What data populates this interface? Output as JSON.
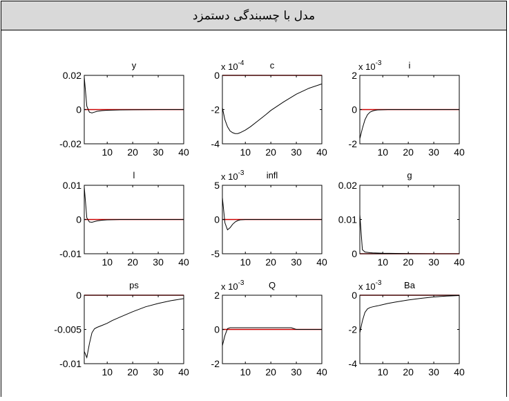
{
  "header": {
    "title": "مدل با چسبندگی دستمزد"
  },
  "colors": {
    "response": "#000000",
    "zero_line": "#cc0000",
    "axis": "#000000",
    "header_bg": "#d9d9d9"
  },
  "chart_data": [
    {
      "type": "line",
      "title": "y",
      "exponent": "",
      "xlim": [
        1,
        40
      ],
      "ylim": [
        -0.02,
        0.02
      ],
      "xticks": [
        "10",
        "20",
        "30",
        "40"
      ],
      "yticks": [
        "0.02",
        "0",
        "-0.02"
      ],
      "series": [
        {
          "x": [
            1,
            2,
            3,
            4,
            5,
            6,
            8,
            10,
            15,
            20,
            30,
            40
          ],
          "values": [
            0.019,
            0.002,
            -0.0015,
            -0.002,
            -0.0015,
            -0.001,
            -0.0006,
            -0.0004,
            -0.0002,
            -0.0001,
            0,
            0
          ]
        }
      ]
    },
    {
      "type": "line",
      "title": "c",
      "exponent": "-4",
      "xlim": [
        1,
        40
      ],
      "ylim": [
        -4,
        0
      ],
      "xticks": [
        "10",
        "20",
        "30",
        "40"
      ],
      "yticks": [
        "0",
        "-2",
        "-4"
      ],
      "series": [
        {
          "x": [
            1,
            2,
            3,
            4,
            5,
            6,
            7,
            8,
            10,
            12,
            15,
            18,
            20,
            25,
            30,
            35,
            40
          ],
          "values": [
            -1.9,
            -2.6,
            -3.0,
            -3.25,
            -3.35,
            -3.4,
            -3.4,
            -3.35,
            -3.2,
            -3.0,
            -2.65,
            -2.3,
            -2.05,
            -1.55,
            -1.1,
            -0.75,
            -0.5
          ]
        }
      ]
    },
    {
      "type": "line",
      "title": "i",
      "exponent": "-3",
      "xlim": [
        1,
        40
      ],
      "ylim": [
        -2,
        2
      ],
      "xticks": [
        "10",
        "20",
        "30",
        "40"
      ],
      "yticks": [
        "2",
        "0",
        "-2"
      ],
      "series": [
        {
          "x": [
            1,
            2,
            3,
            4,
            5,
            6,
            7,
            8,
            10,
            12,
            15,
            20,
            30,
            40
          ],
          "values": [
            -1.7,
            -1.1,
            -0.6,
            -0.3,
            -0.15,
            -0.08,
            -0.04,
            -0.02,
            -0.01,
            0,
            0,
            0,
            0,
            0
          ]
        }
      ]
    },
    {
      "type": "line",
      "title": "l",
      "exponent": "",
      "xlim": [
        1,
        40
      ],
      "ylim": [
        -0.01,
        0.01
      ],
      "xticks": [
        "10",
        "20",
        "30",
        "40"
      ],
      "yticks": [
        "0.01",
        "0",
        "-0.01"
      ],
      "series": [
        {
          "x": [
            1,
            2,
            3,
            4,
            5,
            6,
            8,
            10,
            15,
            20,
            30,
            40
          ],
          "values": [
            0.0095,
            0.0005,
            -0.0007,
            -0.0008,
            -0.0006,
            -0.0004,
            -0.0002,
            -0.0001,
            0,
            0,
            0,
            0
          ]
        }
      ]
    },
    {
      "type": "line",
      "title": "infl",
      "exponent": "-3",
      "xlim": [
        1,
        40
      ],
      "ylim": [
        -5,
        5
      ],
      "xticks": [
        "10",
        "20",
        "30",
        "40"
      ],
      "yticks": [
        "5",
        "0",
        "-5"
      ],
      "series": [
        {
          "x": [
            1,
            2,
            3,
            4,
            5,
            6,
            7,
            8,
            10,
            15,
            20,
            30,
            40
          ],
          "values": [
            3.2,
            -0.5,
            -1.5,
            -1.2,
            -0.7,
            -0.35,
            -0.15,
            -0.05,
            0,
            0,
            0,
            0,
            0
          ]
        }
      ]
    },
    {
      "type": "line",
      "title": "g",
      "exponent": "",
      "xlim": [
        1,
        40
      ],
      "ylim": [
        0,
        0.02
      ],
      "xticks": [
        "10",
        "20",
        "30",
        "40"
      ],
      "yticks": [
        "0.02",
        "0.01",
        "0"
      ],
      "series": [
        {
          "x": [
            1,
            2,
            3,
            4,
            5,
            6,
            8,
            10,
            15,
            20,
            30,
            40
          ],
          "values": [
            0.0115,
            0.0012,
            0.0005,
            0.0004,
            0.0003,
            0.00025,
            0.0002,
            0.00015,
            0.0001,
            5e-05,
            0,
            0
          ]
        }
      ]
    },
    {
      "type": "line",
      "title": "ps",
      "exponent": "",
      "xlim": [
        1,
        40
      ],
      "ylim": [
        -0.01,
        0
      ],
      "xticks": [
        "10",
        "20",
        "30",
        "40"
      ],
      "yticks": [
        "0",
        "-0.005",
        "-0.01"
      ],
      "series": [
        {
          "x": [
            1,
            2,
            3,
            4,
            5,
            6,
            8,
            10,
            12,
            15,
            20,
            25,
            30,
            35,
            40
          ],
          "values": [
            -0.0082,
            -0.0091,
            -0.0071,
            -0.0055,
            -0.0049,
            -0.0047,
            -0.0044,
            -0.0041,
            -0.0037,
            -0.0032,
            -0.0024,
            -0.0017,
            -0.0012,
            -0.0008,
            -0.0005
          ]
        }
      ]
    },
    {
      "type": "line",
      "title": "Q",
      "exponent": "-3",
      "xlim": [
        1,
        40
      ],
      "ylim": [
        -2,
        2
      ],
      "xticks": [
        "10",
        "20",
        "30",
        "40"
      ],
      "yticks": [
        "2",
        "0",
        "-2"
      ],
      "series": [
        {
          "x": [
            1,
            2,
            3,
            4,
            5,
            8,
            10,
            15,
            20,
            25,
            28,
            30,
            35,
            40
          ],
          "values": [
            -0.95,
            -0.35,
            0.05,
            0.1,
            0.1,
            0.1,
            0.1,
            0.1,
            0.1,
            0.1,
            0.1,
            0,
            0,
            0
          ]
        }
      ]
    },
    {
      "type": "line",
      "title": "Ba",
      "exponent": "-3",
      "xlim": [
        1,
        40
      ],
      "ylim": [
        -4,
        0
      ],
      "xticks": [
        "10",
        "20",
        "30",
        "40"
      ],
      "yticks": [
        "0",
        "-2",
        "-4"
      ],
      "series": [
        {
          "x": [
            1,
            2,
            3,
            4,
            5,
            6,
            8,
            10,
            12,
            15,
            20,
            25,
            30,
            35,
            40
          ],
          "values": [
            -2.2,
            -1.5,
            -1.0,
            -0.8,
            -0.72,
            -0.68,
            -0.62,
            -0.55,
            -0.48,
            -0.4,
            -0.28,
            -0.18,
            -0.1,
            -0.05,
            -0.02
          ]
        }
      ]
    }
  ]
}
